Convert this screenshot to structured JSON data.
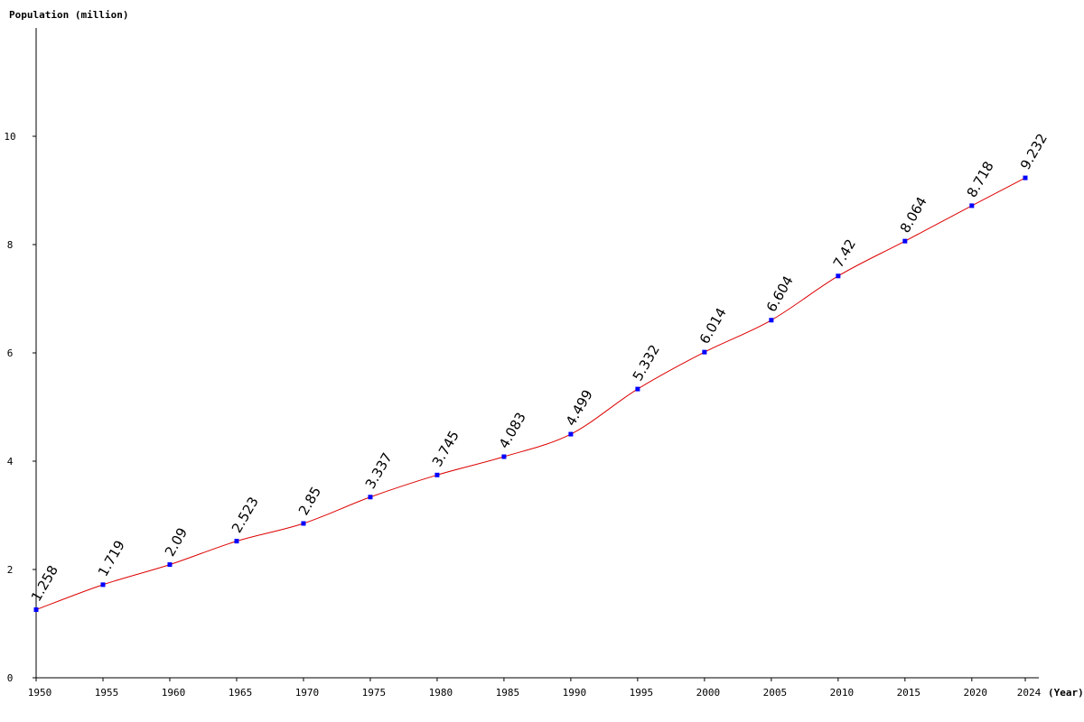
{
  "chart_data": {
    "type": "line",
    "ylabel": "Population (million)",
    "xlabel": "(Year)",
    "x": [
      1950,
      1955,
      1960,
      1965,
      1970,
      1975,
      1980,
      1985,
      1990,
      1995,
      2000,
      2005,
      2010,
      2015,
      2020,
      2024
    ],
    "series": [
      {
        "values": [
          1.258,
          1.719,
          2.09,
          2.523,
          2.85,
          3.337,
          3.745,
          4.083,
          4.499,
          5.332,
          6.014,
          6.604,
          7.42,
          8.064,
          8.718,
          9.232
        ],
        "labels": [
          "1.258",
          "1.719",
          "2.09",
          "2.523",
          "2.85",
          "3.337",
          "3.745",
          "4.083",
          "4.499",
          "5.332",
          "6.014",
          "6.604",
          "7.42",
          "8.064",
          "8.718",
          "9.232"
        ]
      }
    ],
    "yticks": [
      0,
      2,
      4,
      6,
      8,
      10
    ],
    "ylim": [
      0,
      12
    ],
    "xlim": [
      1950,
      2024
    ],
    "grid": false,
    "line_color": "#dd0000",
    "marker_color": "#0000ff"
  }
}
